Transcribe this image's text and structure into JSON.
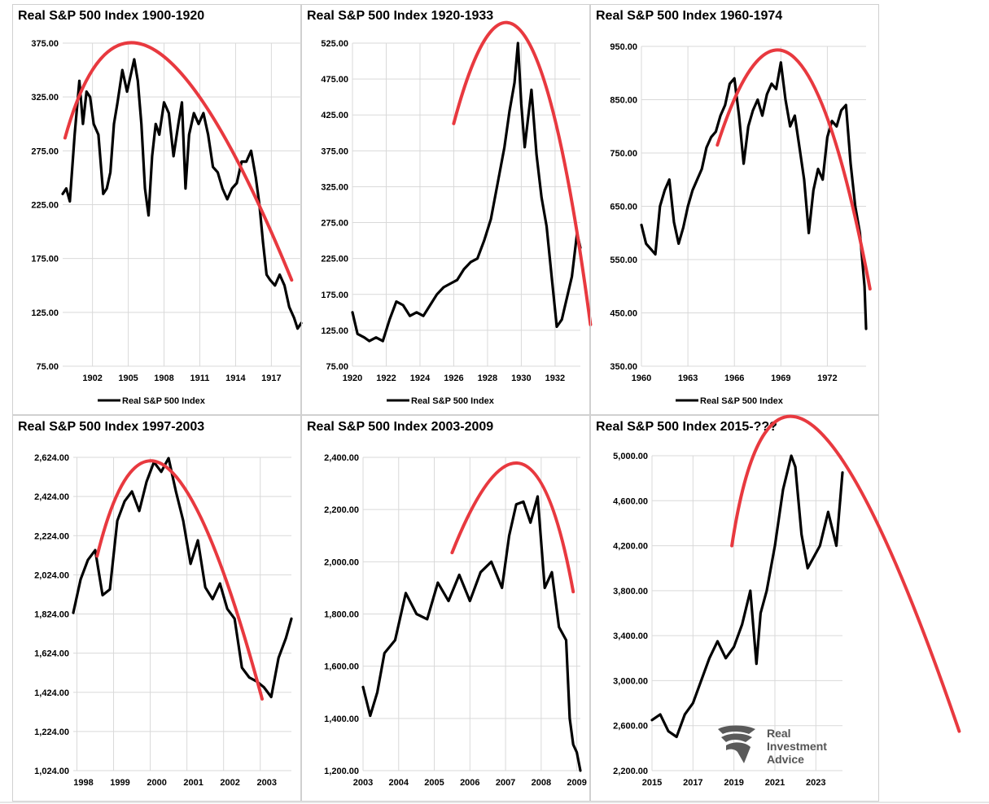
{
  "colors": {
    "series": "#000000",
    "trend_arc": "#e8393f",
    "grid": "#d9d9d9",
    "panel_border": "#d0d0d0",
    "watermark": "#555555"
  },
  "watermark": {
    "icon": "eagle-logo-icon",
    "lines": [
      "Real",
      "Investment",
      "Advice"
    ]
  },
  "chart_data": [
    {
      "type": "line",
      "title": "Real S&P 500 Index 1900-1920",
      "ylim": [
        75,
        375
      ],
      "ytick_labels": [
        "75.00",
        "125.00",
        "175.00",
        "225.00",
        "275.00",
        "325.00",
        "375.00"
      ],
      "xlim": [
        1899.5,
        1919.5
      ],
      "xtick_labels": [
        "1902",
        "1905",
        "1908",
        "1911",
        "1914",
        "1917"
      ],
      "grid": true,
      "legend": [
        "Real S&P 500 Index"
      ],
      "legend_position": "bottom",
      "series": [
        {
          "name": "Real S&P 500 Index",
          "x": [
            1899.5,
            1899.8,
            1900.1,
            1900.5,
            1900.9,
            1901.2,
            1901.5,
            1901.8,
            1902.1,
            1902.5,
            1902.9,
            1903.2,
            1903.5,
            1903.8,
            1904.1,
            1904.5,
            1904.9,
            1905.2,
            1905.5,
            1905.8,
            1906.1,
            1906.4,
            1906.7,
            1907.0,
            1907.3,
            1907.6,
            1908.0,
            1908.4,
            1908.8,
            1909.2,
            1909.5,
            1909.8,
            1910.1,
            1910.5,
            1910.9,
            1911.3,
            1911.7,
            1912.1,
            1912.5,
            1912.9,
            1913.3,
            1913.7,
            1914.1,
            1914.5,
            1914.9,
            1915.3,
            1915.7,
            1916.0,
            1916.3,
            1916.6,
            1916.9,
            1917.3,
            1917.7,
            1918.1,
            1918.5,
            1918.9,
            1919.2,
            1919.5
          ],
          "y": [
            235,
            240,
            228,
            290,
            340,
            300,
            330,
            325,
            300,
            290,
            235,
            240,
            255,
            300,
            320,
            350,
            330,
            345,
            360,
            340,
            300,
            240,
            215,
            270,
            300,
            290,
            320,
            310,
            270,
            300,
            320,
            240,
            290,
            310,
            300,
            310,
            290,
            260,
            255,
            240,
            230,
            240,
            245,
            265,
            265,
            275,
            250,
            225,
            190,
            160,
            155,
            150,
            160,
            150,
            130,
            120,
            110,
            115
          ]
        }
      ],
      "trend_arc": {
        "x": [
          1899.7,
          1907.3,
          1918.7
        ],
        "y": [
          287,
          368,
          155
        ]
      }
    },
    {
      "type": "line",
      "title": "Real S&P 500 Index 1920-1933",
      "ylim": [
        75,
        525
      ],
      "ytick_labels": [
        "75.00",
        "125.00",
        "175.00",
        "225.00",
        "275.00",
        "325.00",
        "375.00",
        "425.00",
        "475.00",
        "525.00"
      ],
      "xlim": [
        1920,
        1933.5
      ],
      "xtick_labels": [
        "1920",
        "1922",
        "1924",
        "1926",
        "1928",
        "1930",
        "1932"
      ],
      "grid": true,
      "legend": [
        "Real S&P 500 Index"
      ],
      "legend_position": "bottom",
      "series": [
        {
          "name": "Real S&P 500 Index",
          "x": [
            1920.0,
            1920.3,
            1920.7,
            1921.0,
            1921.4,
            1921.8,
            1922.2,
            1922.6,
            1923.0,
            1923.4,
            1923.8,
            1924.2,
            1924.6,
            1925.0,
            1925.4,
            1925.8,
            1926.2,
            1926.6,
            1927.0,
            1927.4,
            1927.8,
            1928.2,
            1928.6,
            1929.0,
            1929.3,
            1929.6,
            1929.8,
            1930.0,
            1930.2,
            1930.4,
            1930.6,
            1930.9,
            1931.2,
            1931.5,
            1931.8,
            1932.1,
            1932.4,
            1932.7,
            1933.0,
            1933.3,
            1933.5
          ],
          "y": [
            150,
            120,
            115,
            110,
            115,
            110,
            140,
            165,
            160,
            145,
            150,
            145,
            160,
            175,
            185,
            190,
            195,
            210,
            220,
            225,
            250,
            280,
            330,
            380,
            430,
            470,
            525,
            440,
            380,
            420,
            460,
            370,
            310,
            270,
            200,
            130,
            140,
            170,
            200,
            260,
            240
          ]
        }
      ],
      "trend_arc": {
        "x": [
          1926.0,
          1930.2,
          1934.1
        ],
        "y": [
          413,
          535,
          133
        ]
      }
    },
    {
      "type": "line",
      "title": "Real S&P 500 Index 1960-1974",
      "ylim": [
        350,
        950
      ],
      "ytick_labels": [
        "350.00",
        "450.00",
        "550.00",
        "650.00",
        "750.00",
        "850.00",
        "950.00"
      ],
      "xlim": [
        1960,
        1974.5
      ],
      "xtick_labels": [
        "1960",
        "1963",
        "1966",
        "1969",
        "1972"
      ],
      "grid": true,
      "legend": [
        "Real S&P 500 Index"
      ],
      "legend_position": "bottom",
      "series": [
        {
          "name": "Real S&P 500 Index",
          "x": [
            1960.0,
            1960.3,
            1960.6,
            1960.9,
            1961.2,
            1961.5,
            1961.8,
            1962.1,
            1962.4,
            1962.7,
            1963.0,
            1963.3,
            1963.6,
            1963.9,
            1964.2,
            1964.5,
            1964.8,
            1965.1,
            1965.4,
            1965.7,
            1966.0,
            1966.3,
            1966.6,
            1966.9,
            1967.2,
            1967.5,
            1967.8,
            1968.1,
            1968.4,
            1968.7,
            1969.0,
            1969.3,
            1969.6,
            1969.9,
            1970.2,
            1970.5,
            1970.8,
            1971.1,
            1971.4,
            1971.7,
            1972.0,
            1972.3,
            1972.6,
            1972.9,
            1973.2,
            1973.5,
            1973.8,
            1974.1,
            1974.4,
            1974.5
          ],
          "y": [
            615,
            580,
            570,
            560,
            650,
            680,
            700,
            620,
            580,
            610,
            650,
            680,
            700,
            720,
            760,
            780,
            790,
            820,
            840,
            880,
            890,
            820,
            730,
            800,
            830,
            850,
            820,
            860,
            880,
            870,
            920,
            850,
            800,
            820,
            760,
            700,
            600,
            680,
            720,
            700,
            780,
            810,
            800,
            830,
            840,
            730,
            650,
            600,
            500,
            420
          ]
        }
      ],
      "trend_arc": {
        "x": [
          1964.9,
          1969.9,
          1974.75
        ],
        "y": [
          765,
          928,
          495
        ]
      }
    },
    {
      "type": "line",
      "title": "Real S&P 500 Index 1997-2003",
      "ylim": [
        1024,
        2624
      ],
      "ytick_labels": [
        "1,024.00",
        "1,224.00",
        "1,424.00",
        "1,624.00",
        "1,824.00",
        "2,024.00",
        "2,224.00",
        "2,424.00",
        "2,624.00"
      ],
      "xlim": [
        1997.9,
        2003.85
      ],
      "xtick_labels": [
        "1998",
        "1999",
        "2000",
        "2001",
        "2002",
        "2003"
      ],
      "grid": true,
      "series": [
        {
          "name": "Real S&P 500 Index",
          "x": [
            1997.9,
            1998.1,
            1998.3,
            1998.5,
            1998.7,
            1998.9,
            1999.1,
            1999.3,
            1999.5,
            1999.7,
            1999.9,
            2000.1,
            2000.3,
            2000.5,
            2000.7,
            2000.9,
            2001.1,
            2001.3,
            2001.5,
            2001.7,
            2001.9,
            2002.1,
            2002.3,
            2002.5,
            2002.7,
            2002.9,
            2003.1,
            2003.3,
            2003.5,
            2003.7,
            2003.85
          ],
          "y": [
            1830,
            2000,
            2100,
            2150,
            1920,
            1950,
            2300,
            2400,
            2450,
            2350,
            2500,
            2600,
            2550,
            2620,
            2450,
            2300,
            2080,
            2200,
            1960,
            1900,
            1980,
            1850,
            1800,
            1550,
            1500,
            1480,
            1450,
            1400,
            1600,
            1700,
            1800
          ]
        }
      ],
      "trend_arc": {
        "x": [
          1998.55,
          2000.5,
          2003.05
        ],
        "y": [
          2120,
          2565,
          1390
        ]
      }
    },
    {
      "type": "line",
      "title": "Real S&P 500 Index 2003-2009",
      "ylim": [
        1200,
        2400
      ],
      "ytick_labels": [
        "1,200.00",
        "1,400.00",
        "1,600.00",
        "1,800.00",
        "2,000.00",
        "2,200.00",
        "2,400.00"
      ],
      "xlim": [
        2003,
        2009.1
      ],
      "xtick_labels": [
        "2003",
        "2004",
        "2005",
        "2006",
        "2007",
        "2008",
        "2009"
      ],
      "grid": true,
      "series": [
        {
          "name": "Real S&P 500 Index",
          "x": [
            2003.0,
            2003.2,
            2003.4,
            2003.6,
            2003.9,
            2004.2,
            2004.5,
            2004.8,
            2005.1,
            2005.4,
            2005.7,
            2006.0,
            2006.3,
            2006.6,
            2006.9,
            2007.1,
            2007.3,
            2007.5,
            2007.7,
            2007.9,
            2008.1,
            2008.3,
            2008.5,
            2008.7,
            2008.8,
            2008.9,
            2009.0,
            2009.1
          ],
          "y": [
            1520,
            1410,
            1500,
            1650,
            1700,
            1880,
            1800,
            1780,
            1920,
            1850,
            1950,
            1850,
            1960,
            2000,
            1900,
            2100,
            2220,
            2230,
            2150,
            2250,
            1900,
            1960,
            1750,
            1700,
            1400,
            1300,
            1270,
            1200
          ]
        }
      ],
      "trend_arc": {
        "x": [
          2005.5,
          2007.45,
          2008.9
        ],
        "y": [
          2035,
          2375,
          1885
        ]
      }
    },
    {
      "type": "line",
      "title": "Real S&P 500 Index 2015-???",
      "ylim": [
        2200,
        5000
      ],
      "ytick_labels": [
        "2,200.00",
        "2,600.00",
        "3,000.00",
        "3,400.00",
        "3,800.00",
        "4,200.00",
        "4,600.00",
        "5,000.00"
      ],
      "xlim": [
        2015,
        2024.3
      ],
      "xtick_labels": [
        "2015",
        "2017",
        "2019",
        "2021",
        "2023"
      ],
      "grid": true,
      "series": [
        {
          "name": "Real S&P 500 Index",
          "x": [
            2015.0,
            2015.4,
            2015.8,
            2016.2,
            2016.6,
            2017.0,
            2017.4,
            2017.8,
            2018.2,
            2018.6,
            2019.0,
            2019.4,
            2019.8,
            2020.1,
            2020.3,
            2020.6,
            2021.0,
            2021.4,
            2021.8,
            2022.0,
            2022.3,
            2022.6,
            2022.9,
            2023.2,
            2023.6,
            2024.0,
            2024.3
          ],
          "y": [
            2650,
            2700,
            2550,
            2500,
            2700,
            2800,
            3000,
            3200,
            3350,
            3200,
            3300,
            3500,
            3800,
            3150,
            3600,
            3800,
            4200,
            4700,
            5000,
            4900,
            4300,
            4000,
            4100,
            4200,
            4500,
            4200,
            4850
          ]
        }
      ],
      "trend_arc": {
        "x": [
          2018.9,
          2022.9,
          2030.0
        ],
        "y": [
          4200,
          5260,
          2550
        ]
      }
    }
  ]
}
